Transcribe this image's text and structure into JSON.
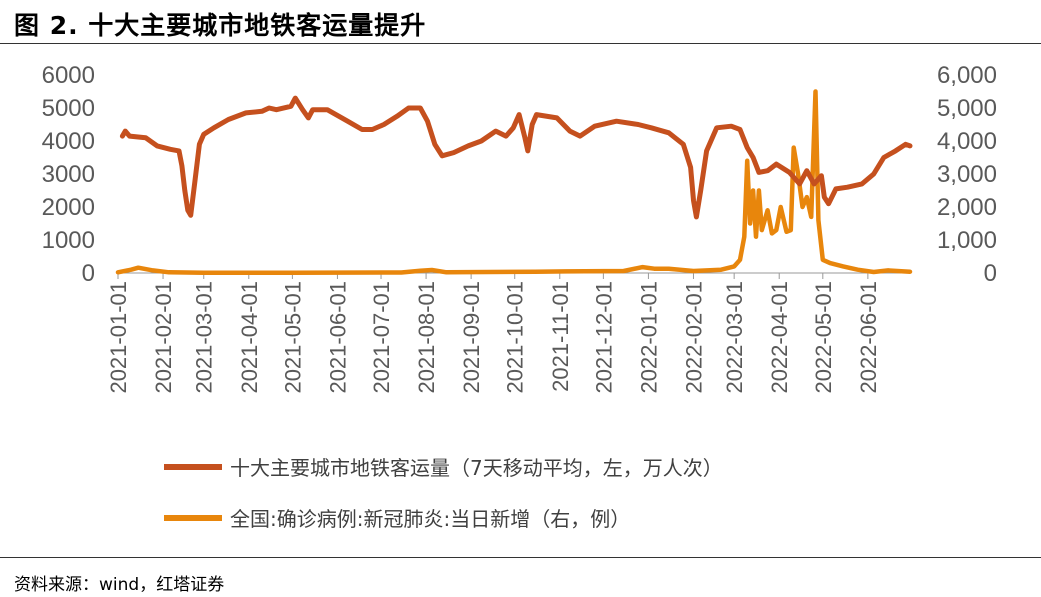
{
  "title": "图 2. 十大主要城市地铁客运量提升",
  "source": "资料来源：wind，红塔证券",
  "chart_data": {
    "type": "line",
    "left_axis": {
      "ticks": [
        "6000",
        "5000",
        "4000",
        "3000",
        "2000",
        "1000",
        "0"
      ],
      "ylim": [
        0,
        6000
      ]
    },
    "right_axis": {
      "ticks": [
        "6,000",
        "5,000",
        "4,000",
        "3,000",
        "2,000",
        "1,000",
        "0"
      ],
      "ylim": [
        0,
        6000
      ]
    },
    "x_ticks": [
      "2021-01-01",
      "2021-02-01",
      "2021-03-01",
      "2021-04-01",
      "2021-05-01",
      "2021-06-01",
      "2021-07-01",
      "2021-08-01",
      "2021-09-01",
      "2021-10-01",
      "2021-11-01",
      "2021-12-01",
      "2022-01-01",
      "2022-02-01",
      "2022-03-01",
      "2022-04-01",
      "2022-05-01",
      "2022-06-01"
    ],
    "series": [
      {
        "name": "十大主要城市地铁客运量（7天移动平均，左，万人次）",
        "axis": "left",
        "color": "#C5501E",
        "points": [
          [
            "2021-01-04",
            4150
          ],
          [
            "2021-01-06",
            4300
          ],
          [
            "2021-01-09",
            4150
          ],
          [
            "2021-01-20",
            4100
          ],
          [
            "2021-01-28",
            3850
          ],
          [
            "2021-02-06",
            3750
          ],
          [
            "2021-02-12",
            3700
          ],
          [
            "2021-02-14",
            3250
          ],
          [
            "2021-02-16",
            2500
          ],
          [
            "2021-02-18",
            1900
          ],
          [
            "2021-02-20",
            1750
          ],
          [
            "2021-02-23",
            2800
          ],
          [
            "2021-02-26",
            3900
          ],
          [
            "2021-03-01",
            4200
          ],
          [
            "2021-03-08",
            4400
          ],
          [
            "2021-03-18",
            4650
          ],
          [
            "2021-03-30",
            4850
          ],
          [
            "2021-04-10",
            4900
          ],
          [
            "2021-04-15",
            5000
          ],
          [
            "2021-04-20",
            4950
          ],
          [
            "2021-04-30",
            5050
          ],
          [
            "2021-05-03",
            5300
          ],
          [
            "2021-05-08",
            4950
          ],
          [
            "2021-05-12",
            4700
          ],
          [
            "2021-05-15",
            4950
          ],
          [
            "2021-05-25",
            4950
          ],
          [
            "2021-06-08",
            4600
          ],
          [
            "2021-06-18",
            4350
          ],
          [
            "2021-06-25",
            4350
          ],
          [
            "2021-07-03",
            4500
          ],
          [
            "2021-07-12",
            4750
          ],
          [
            "2021-07-20",
            5000
          ],
          [
            "2021-07-28",
            5000
          ],
          [
            "2021-08-02",
            4600
          ],
          [
            "2021-08-07",
            3900
          ],
          [
            "2021-08-12",
            3550
          ],
          [
            "2021-08-20",
            3650
          ],
          [
            "2021-08-30",
            3850
          ],
          [
            "2021-09-08",
            4000
          ],
          [
            "2021-09-18",
            4300
          ],
          [
            "2021-09-25",
            4150
          ],
          [
            "2021-09-30",
            4400
          ],
          [
            "2021-10-04",
            4800
          ],
          [
            "2021-10-08",
            4100
          ],
          [
            "2021-10-10",
            3700
          ],
          [
            "2021-10-13",
            4500
          ],
          [
            "2021-10-16",
            4800
          ],
          [
            "2021-10-30",
            4700
          ],
          [
            "2021-11-08",
            4300
          ],
          [
            "2021-11-15",
            4150
          ],
          [
            "2021-11-25",
            4450
          ],
          [
            "2021-12-10",
            4600
          ],
          [
            "2021-12-25",
            4500
          ],
          [
            "2022-01-03",
            4400
          ],
          [
            "2022-01-15",
            4250
          ],
          [
            "2022-01-25",
            3900
          ],
          [
            "2022-01-30",
            3200
          ],
          [
            "2022-02-01",
            2200
          ],
          [
            "2022-02-03",
            1700
          ],
          [
            "2022-02-06",
            2500
          ],
          [
            "2022-02-10",
            3700
          ],
          [
            "2022-02-17",
            4400
          ],
          [
            "2022-02-27",
            4450
          ],
          [
            "2022-03-05",
            4350
          ],
          [
            "2022-03-10",
            3800
          ],
          [
            "2022-03-14",
            3500
          ],
          [
            "2022-03-18",
            3050
          ],
          [
            "2022-03-24",
            3100
          ],
          [
            "2022-03-30",
            3300
          ],
          [
            "2022-04-08",
            3050
          ],
          [
            "2022-04-15",
            2700
          ],
          [
            "2022-04-20",
            3100
          ],
          [
            "2022-04-25",
            2700
          ],
          [
            "2022-04-30",
            2950
          ],
          [
            "2022-05-02",
            2300
          ],
          [
            "2022-05-05",
            2100
          ],
          [
            "2022-05-10",
            2550
          ],
          [
            "2022-05-18",
            2600
          ],
          [
            "2022-05-28",
            2700
          ],
          [
            "2022-06-05",
            3000
          ],
          [
            "2022-06-12",
            3500
          ],
          [
            "2022-06-20",
            3700
          ],
          [
            "2022-06-27",
            3900
          ],
          [
            "2022-06-30",
            3850
          ]
        ]
      },
      {
        "name": "全国:确诊病例:新冠肺炎:当日新增（右，例）",
        "axis": "right",
        "color": "#E8860C",
        "points": [
          [
            "2021-01-01",
            20
          ],
          [
            "2021-01-10",
            100
          ],
          [
            "2021-01-15",
            160
          ],
          [
            "2021-01-25",
            80
          ],
          [
            "2021-02-05",
            20
          ],
          [
            "2021-03-01",
            10
          ],
          [
            "2021-05-01",
            10
          ],
          [
            "2021-07-15",
            15
          ],
          [
            "2021-07-28",
            70
          ],
          [
            "2021-08-05",
            90
          ],
          [
            "2021-08-15",
            20
          ],
          [
            "2021-10-15",
            40
          ],
          [
            "2021-11-05",
            50
          ],
          [
            "2021-12-15",
            60
          ],
          [
            "2021-12-28",
            180
          ],
          [
            "2022-01-05",
            130
          ],
          [
            "2022-01-15",
            130
          ],
          [
            "2022-02-01",
            60
          ],
          [
            "2022-02-20",
            100
          ],
          [
            "2022-03-01",
            200
          ],
          [
            "2022-03-05",
            400
          ],
          [
            "2022-03-08",
            1100
          ],
          [
            "2022-03-10",
            3400
          ],
          [
            "2022-03-12",
            1500
          ],
          [
            "2022-03-14",
            2500
          ],
          [
            "2022-03-16",
            1100
          ],
          [
            "2022-03-18",
            2500
          ],
          [
            "2022-03-20",
            1300
          ],
          [
            "2022-03-24",
            1900
          ],
          [
            "2022-03-27",
            1200
          ],
          [
            "2022-03-30",
            1300
          ],
          [
            "2022-04-02",
            2000
          ],
          [
            "2022-04-06",
            1250
          ],
          [
            "2022-04-09",
            1300
          ],
          [
            "2022-04-11",
            3800
          ],
          [
            "2022-04-14",
            3000
          ],
          [
            "2022-04-17",
            2000
          ],
          [
            "2022-04-20",
            2300
          ],
          [
            "2022-04-23",
            1700
          ],
          [
            "2022-04-26",
            5500
          ],
          [
            "2022-04-28",
            1600
          ],
          [
            "2022-05-01",
            400
          ],
          [
            "2022-05-06",
            300
          ],
          [
            "2022-05-15",
            200
          ],
          [
            "2022-05-25",
            100
          ],
          [
            "2022-06-05",
            30
          ],
          [
            "2022-06-15",
            80
          ],
          [
            "2022-06-30",
            40
          ]
        ]
      }
    ]
  }
}
